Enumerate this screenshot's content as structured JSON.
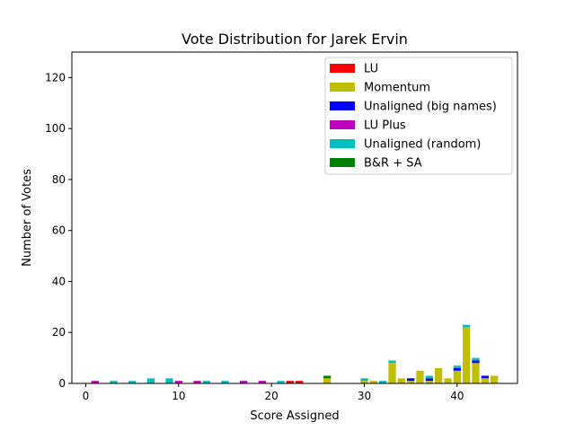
{
  "chart_data": {
    "type": "bar",
    "stacked": true,
    "title": "Vote Distribution for Jarek Ervin",
    "xlabel": "Score Assigned",
    "ylabel": "Number of Votes",
    "xlim": [
      -1.5,
      46.5
    ],
    "ylim": [
      0,
      130
    ],
    "xticks": [
      0,
      10,
      20,
      30,
      40
    ],
    "yticks": [
      0,
      20,
      40,
      60,
      80,
      100,
      120
    ],
    "legend_position": "top-right",
    "x": [
      1,
      3,
      5,
      7,
      9,
      10,
      12,
      13,
      15,
      17,
      19,
      21,
      22,
      23,
      26,
      30,
      31,
      32,
      33,
      34,
      35,
      36,
      37,
      38,
      39,
      40,
      41,
      42,
      43,
      44
    ],
    "series": [
      {
        "name": "LU",
        "color": "#ff0000",
        "values": [
          0,
          0,
          0,
          0,
          0,
          0,
          0,
          0,
          0,
          0,
          0,
          0,
          1,
          1,
          0,
          0,
          0,
          0,
          0,
          0,
          0,
          0,
          0,
          0,
          0,
          0,
          0,
          0,
          0,
          0
        ]
      },
      {
        "name": "Momentum",
        "color": "#bfbf00",
        "values": [
          0,
          0,
          0,
          0,
          0,
          0,
          0,
          0,
          0,
          0,
          0,
          0,
          0,
          0,
          2,
          1,
          1,
          0,
          8,
          2,
          1,
          5,
          1,
          6,
          2,
          5,
          22,
          8,
          2,
          3
        ]
      },
      {
        "name": "Unaligned (big names)",
        "color": "#0000ff",
        "values": [
          0,
          0,
          0,
          0,
          0,
          0,
          0,
          0,
          0,
          0,
          0,
          0,
          0,
          0,
          0,
          0,
          0,
          0,
          0,
          0,
          1,
          0,
          1,
          0,
          0,
          1,
          0,
          1,
          1,
          0
        ]
      },
      {
        "name": "LU Plus",
        "color": "#bf00bf",
        "values": [
          1,
          0,
          0,
          0,
          0,
          1,
          1,
          0,
          0,
          1,
          1,
          0,
          0,
          0,
          0,
          0,
          0,
          0,
          0,
          0,
          0,
          0,
          0,
          0,
          0,
          0,
          0,
          0,
          0,
          0
        ]
      },
      {
        "name": "Unaligned (random)",
        "color": "#00bfbf",
        "values": [
          0,
          1,
          1,
          2,
          2,
          0,
          0,
          1,
          1,
          0,
          0,
          1,
          0,
          0,
          0,
          1,
          0,
          1,
          1,
          0,
          0,
          0,
          1,
          0,
          0,
          1,
          1,
          1,
          0,
          0
        ]
      },
      {
        "name": "B&R + SA",
        "color": "#008000",
        "values": [
          0,
          0,
          0,
          0,
          0,
          0,
          0,
          0,
          0,
          0,
          0,
          0,
          0,
          0,
          1,
          0,
          0,
          0,
          0,
          0,
          0,
          0,
          0,
          0,
          0,
          0,
          0,
          0,
          0,
          0
        ]
      }
    ]
  }
}
